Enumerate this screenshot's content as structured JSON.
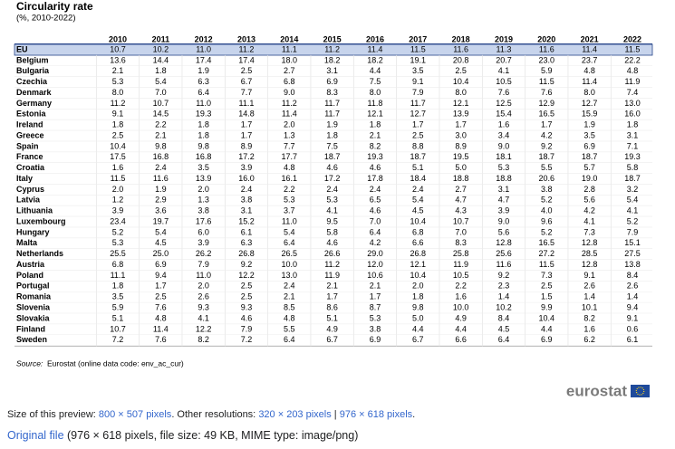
{
  "header": {
    "title": "Circularity rate",
    "subtitle": "(%, 2010-2022)"
  },
  "table": {
    "columns": [
      "2010",
      "2011",
      "2012",
      "2013",
      "2014",
      "2015",
      "2016",
      "2017",
      "2018",
      "2019",
      "2020",
      "2021",
      "2022"
    ],
    "rows": [
      {
        "label": "EU",
        "values": [
          "10.7",
          "10.2",
          "11.0",
          "11.2",
          "11.1",
          "11.2",
          "11.4",
          "11.5",
          "11.6",
          "11.3",
          "11.6",
          "11.4",
          "11.5"
        ]
      },
      {
        "label": "Belgium",
        "values": [
          "13.6",
          "14.4",
          "17.4",
          "17.4",
          "18.0",
          "18.2",
          "18.2",
          "19.1",
          "20.8",
          "20.7",
          "23.0",
          "23.7",
          "22.2"
        ]
      },
      {
        "label": "Bulgaria",
        "values": [
          "2.1",
          "1.8",
          "1.9",
          "2.5",
          "2.7",
          "3.1",
          "4.4",
          "3.5",
          "2.5",
          "4.1",
          "5.9",
          "4.8",
          "4.8"
        ]
      },
      {
        "label": "Czechia",
        "values": [
          "5.3",
          "5.4",
          "6.3",
          "6.7",
          "6.8",
          "6.9",
          "7.5",
          "9.1",
          "10.4",
          "10.5",
          "11.5",
          "11.4",
          "11.9"
        ]
      },
      {
        "label": "Denmark",
        "values": [
          "8.0",
          "7.0",
          "6.4",
          "7.7",
          "9.0",
          "8.3",
          "8.0",
          "7.9",
          "8.0",
          "7.6",
          "7.6",
          "8.0",
          "7.4"
        ]
      },
      {
        "label": "Germany",
        "values": [
          "11.2",
          "10.7",
          "11.0",
          "11.1",
          "11.2",
          "11.7",
          "11.8",
          "11.7",
          "12.1",
          "12.5",
          "12.9",
          "12.7",
          "13.0"
        ]
      },
      {
        "label": "Estonia",
        "values": [
          "9.1",
          "14.5",
          "19.3",
          "14.8",
          "11.4",
          "11.7",
          "12.1",
          "12.7",
          "13.9",
          "15.4",
          "16.5",
          "15.9",
          "16.0"
        ]
      },
      {
        "label": "Ireland",
        "values": [
          "1.8",
          "2.2",
          "1.8",
          "1.7",
          "2.0",
          "1.9",
          "1.8",
          "1.7",
          "1.7",
          "1.6",
          "1.7",
          "1.9",
          "1.8"
        ]
      },
      {
        "label": "Greece",
        "values": [
          "2.5",
          "2.1",
          "1.8",
          "1.7",
          "1.3",
          "1.8",
          "2.1",
          "2.5",
          "3.0",
          "3.4",
          "4.2",
          "3.5",
          "3.1"
        ]
      },
      {
        "label": "Spain",
        "values": [
          "10.4",
          "9.8",
          "9.8",
          "8.9",
          "7.7",
          "7.5",
          "8.2",
          "8.8",
          "8.9",
          "9.0",
          "9.2",
          "6.9",
          "7.1"
        ]
      },
      {
        "label": "France",
        "values": [
          "17.5",
          "16.8",
          "16.8",
          "17.2",
          "17.7",
          "18.7",
          "19.3",
          "18.7",
          "19.5",
          "18.1",
          "18.7",
          "18.7",
          "19.3"
        ]
      },
      {
        "label": "Croatia",
        "values": [
          "1.6",
          "2.4",
          "3.5",
          "3.9",
          "4.8",
          "4.6",
          "4.6",
          "5.1",
          "5.0",
          "5.3",
          "5.5",
          "5.7",
          "5.8"
        ]
      },
      {
        "label": "Italy",
        "values": [
          "11.5",
          "11.6",
          "13.9",
          "16.0",
          "16.1",
          "17.2",
          "17.8",
          "18.4",
          "18.8",
          "18.8",
          "20.6",
          "19.0",
          "18.7"
        ]
      },
      {
        "label": "Cyprus",
        "values": [
          "2.0",
          "1.9",
          "2.0",
          "2.4",
          "2.2",
          "2.4",
          "2.4",
          "2.4",
          "2.7",
          "3.1",
          "3.8",
          "2.8",
          "3.2"
        ]
      },
      {
        "label": "Latvia",
        "values": [
          "1.2",
          "2.9",
          "1.3",
          "3.8",
          "5.3",
          "5.3",
          "6.5",
          "5.4",
          "4.7",
          "4.7",
          "5.2",
          "5.6",
          "5.4"
        ]
      },
      {
        "label": "Lithuania",
        "values": [
          "3.9",
          "3.6",
          "3.8",
          "3.1",
          "3.7",
          "4.1",
          "4.6",
          "4.5",
          "4.3",
          "3.9",
          "4.0",
          "4.2",
          "4.1"
        ]
      },
      {
        "label": "Luxembourg",
        "values": [
          "23.4",
          "19.7",
          "17.6",
          "15.2",
          "11.0",
          "9.5",
          "7.0",
          "10.4",
          "10.7",
          "9.0",
          "9.6",
          "4.1",
          "5.2"
        ]
      },
      {
        "label": "Hungary",
        "values": [
          "5.2",
          "5.4",
          "6.0",
          "6.1",
          "5.4",
          "5.8",
          "6.4",
          "6.8",
          "7.0",
          "5.6",
          "5.2",
          "7.3",
          "7.9"
        ]
      },
      {
        "label": "Malta",
        "values": [
          "5.3",
          "4.5",
          "3.9",
          "6.3",
          "6.4",
          "4.6",
          "4.2",
          "6.6",
          "8.3",
          "12.8",
          "16.5",
          "12.8",
          "15.1"
        ]
      },
      {
        "label": "Netherlands",
        "values": [
          "25.5",
          "25.0",
          "26.2",
          "26.8",
          "26.5",
          "26.6",
          "29.0",
          "26.8",
          "25.8",
          "25.6",
          "27.2",
          "28.5",
          "27.5"
        ]
      },
      {
        "label": "Austria",
        "values": [
          "6.8",
          "6.9",
          "7.9",
          "9.2",
          "10.0",
          "11.2",
          "12.0",
          "12.1",
          "11.9",
          "11.6",
          "11.5",
          "12.8",
          "13.8"
        ]
      },
      {
        "label": "Poland",
        "values": [
          "11.1",
          "9.4",
          "11.0",
          "12.2",
          "13.0",
          "11.9",
          "10.6",
          "10.4",
          "10.5",
          "9.2",
          "7.3",
          "9.1",
          "8.4"
        ]
      },
      {
        "label": "Portugal",
        "values": [
          "1.8",
          "1.7",
          "2.0",
          "2.5",
          "2.4",
          "2.1",
          "2.1",
          "2.0",
          "2.2",
          "2.3",
          "2.5",
          "2.6",
          "2.6"
        ]
      },
      {
        "label": "Romania",
        "values": [
          "3.5",
          "2.5",
          "2.6",
          "2.5",
          "2.1",
          "1.7",
          "1.7",
          "1.8",
          "1.6",
          "1.4",
          "1.5",
          "1.4",
          "1.4"
        ]
      },
      {
        "label": "Slovenia",
        "values": [
          "5.9",
          "7.6",
          "9.3",
          "9.3",
          "8.5",
          "8.6",
          "8.7",
          "9.8",
          "10.0",
          "10.2",
          "9.9",
          "10.1",
          "9.4"
        ]
      },
      {
        "label": "Slovakia",
        "values": [
          "5.1",
          "4.8",
          "4.1",
          "4.6",
          "4.8",
          "5.1",
          "5.3",
          "5.0",
          "4.9",
          "8.4",
          "10.4",
          "8.2",
          "9.1"
        ]
      },
      {
        "label": "Finland",
        "values": [
          "10.7",
          "11.4",
          "12.2",
          "7.9",
          "5.5",
          "4.9",
          "3.8",
          "4.4",
          "4.4",
          "4.5",
          "4.4",
          "1.6",
          "0.6"
        ]
      },
      {
        "label": "Sweden",
        "values": [
          "7.2",
          "7.6",
          "8.2",
          "7.2",
          "6.4",
          "6.7",
          "6.9",
          "6.7",
          "6.6",
          "6.4",
          "6.9",
          "6.2",
          "6.1"
        ]
      }
    ]
  },
  "source": {
    "prefix": "Source:",
    "text": "Eurostat (online data code: env_ac_cur)"
  },
  "logo": "eurostat",
  "footer": {
    "preview_label": "Size of this preview:",
    "preview_link": "800 × 507 pixels",
    "other_label": ". Other resolutions:",
    "other_links": [
      "320 × 203 pixels",
      "976 × 618 pixels"
    ],
    "separator": "|",
    "end": ".",
    "original_link": "Original file",
    "original_info": "(976 × 618 pixels, file size: 49 KB, MIME type: image/png)"
  }
}
